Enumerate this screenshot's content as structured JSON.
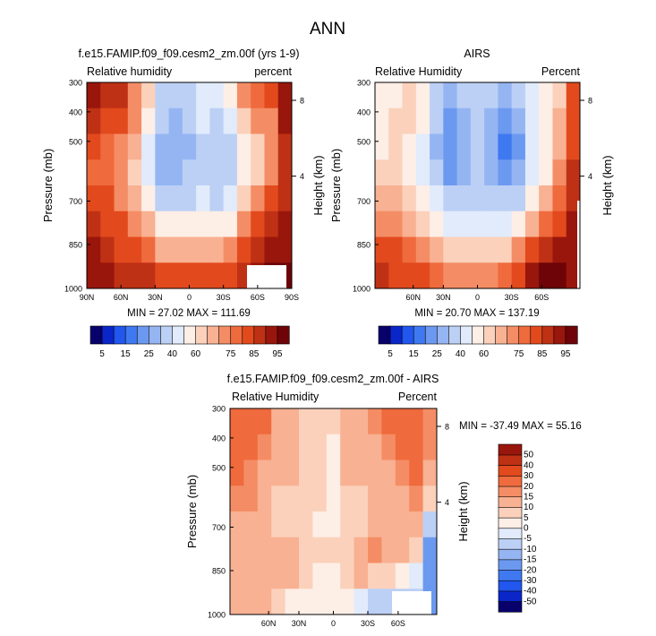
{
  "figure": {
    "title": "ANN"
  },
  "chart_data": [
    {
      "type": "heatmap",
      "title": "f.e15.FAMIP.f09_f09.cesm2_zm.00f (yrs 1-9)",
      "left_label": "Relative humidity",
      "right_label": "percent",
      "ylabel": "Pressure (mb)",
      "y2label": "Height (km)",
      "x_ticks": [
        "90N",
        "60N",
        "30N",
        "0",
        "30S",
        "60S",
        "90S"
      ],
      "y_ticks": [
        "300",
        "400",
        "500",
        "700",
        "850",
        "1000"
      ],
      "y2_ticks": [
        "8",
        "4"
      ],
      "stats": {
        "min": "27.02",
        "max": "111.69",
        "text": "MIN = 27.02  MAX = 111.69"
      },
      "colorbar": {
        "orientation": "horizontal",
        "levels": [
          5,
          10,
          15,
          20,
          25,
          30,
          40,
          50,
          60,
          65,
          70,
          75,
          80,
          85,
          90,
          95
        ],
        "labels": [
          "5",
          "15",
          "25",
          "40",
          "60",
          "75",
          "85",
          "95"
        ],
        "colors": [
          "#08006b",
          "#0a26c9",
          "#2157ee",
          "#3f79f1",
          "#6c99f0",
          "#95b5f2",
          "#bcd0f5",
          "#e1ebfb",
          "#fdeee6",
          "#fbd1bb",
          "#f8b192",
          "#f48d65",
          "#ef6a3d",
          "#e24a1e",
          "#bf3114",
          "#99160c",
          "#6e0408"
        ]
      },
      "values_grid": [
        [
          92,
          88,
          85,
          72,
          60,
          35,
          30,
          33,
          45,
          40,
          50,
          70,
          78,
          80,
          92
        ],
        [
          86,
          82,
          80,
          70,
          55,
          30,
          28,
          30,
          42,
          35,
          45,
          60,
          70,
          74,
          90
        ],
        [
          80,
          78,
          74,
          66,
          48,
          28,
          26,
          28,
          38,
          30,
          38,
          52,
          62,
          70,
          88
        ],
        [
          78,
          76,
          72,
          64,
          46,
          28,
          28,
          30,
          36,
          30,
          36,
          52,
          64,
          72,
          86
        ],
        [
          82,
          80,
          74,
          68,
          56,
          36,
          36,
          38,
          40,
          36,
          44,
          60,
          72,
          80,
          88
        ],
        [
          86,
          84,
          80,
          74,
          66,
          52,
          50,
          52,
          52,
          50,
          58,
          72,
          80,
          86,
          90
        ],
        [
          90,
          88,
          84,
          80,
          76,
          68,
          66,
          68,
          66,
          68,
          74,
          82,
          86,
          90,
          94
        ],
        [
          94,
          92,
          88,
          86,
          86,
          82,
          80,
          80,
          80,
          80,
          84,
          88,
          92,
          96,
          98
        ]
      ],
      "masked_region": "bottom-right corner below 925 mb south of 55S"
    },
    {
      "type": "heatmap",
      "title": "AIRS",
      "left_label": "Relative Humidity",
      "right_label": "Percent",
      "ylabel": "Pressure (mb)",
      "y2label": "Height (km)",
      "x_ticks": [
        "60N",
        "30N",
        "0",
        "30S",
        "60S"
      ],
      "y_ticks": [
        "300",
        "400",
        "500",
        "700",
        "850",
        "1000"
      ],
      "y2_ticks": [
        "8",
        "4"
      ],
      "stats": {
        "min": "20.70",
        "max": "137.19",
        "text": "MIN = 20.70  MAX = 137.19"
      },
      "colorbar": {
        "orientation": "horizontal",
        "levels": [
          5,
          10,
          15,
          20,
          25,
          30,
          40,
          50,
          60,
          65,
          70,
          75,
          80,
          85,
          90,
          95
        ],
        "labels": [
          "5",
          "15",
          "25",
          "40",
          "60",
          "75",
          "85",
          "95"
        ],
        "colors": [
          "#08006b",
          "#0a26c9",
          "#2157ee",
          "#3f79f1",
          "#6c99f0",
          "#95b5f2",
          "#bcd0f5",
          "#e1ebfb",
          "#fdeee6",
          "#fbd1bb",
          "#f8b192",
          "#f48d65",
          "#ef6a3d",
          "#e24a1e",
          "#bf3114",
          "#99160c",
          "#6e0408"
        ]
      },
      "values_grid": [
        [
          52,
          58,
          62,
          55,
          38,
          26,
          30,
          36,
          32,
          26,
          32,
          48,
          58,
          64,
          80
        ],
        [
          55,
          60,
          60,
          50,
          30,
          22,
          28,
          34,
          28,
          22,
          28,
          42,
          55,
          66,
          82
        ],
        [
          56,
          60,
          58,
          48,
          28,
          20,
          26,
          32,
          26,
          18,
          24,
          40,
          56,
          68,
          84
        ],
        [
          60,
          62,
          58,
          48,
          30,
          24,
          28,
          32,
          28,
          22,
          28,
          44,
          58,
          70,
          86
        ],
        [
          66,
          66,
          62,
          54,
          40,
          32,
          34,
          36,
          34,
          32,
          38,
          54,
          66,
          78,
          88
        ],
        [
          74,
          72,
          68,
          62,
          54,
          46,
          44,
          44,
          44,
          46,
          54,
          66,
          76,
          84,
          90
        ],
        [
          82,
          80,
          76,
          72,
          68,
          62,
          60,
          60,
          60,
          62,
          70,
          80,
          86,
          90,
          94
        ],
        [
          86,
          84,
          82,
          80,
          78,
          74,
          72,
          72,
          72,
          76,
          82,
          92,
          100,
          96,
          94
        ]
      ],
      "masked_region": "narrow strip at far south edge below 700 mb"
    },
    {
      "type": "heatmap",
      "title": "f.e15.FAMIP.f09_f09.cesm2_zm.00f - AIRS",
      "left_label": "Relative Humidity",
      "right_label": "Percent",
      "ylabel": "Pressure (mb)",
      "y2label": "Height (km)",
      "x_ticks": [
        "60N",
        "30N",
        "0",
        "30S",
        "60S"
      ],
      "y_ticks": [
        "300",
        "400",
        "500",
        "700",
        "850",
        "1000"
      ],
      "y2_ticks": [
        "8",
        "4"
      ],
      "stats": {
        "min": "-37.49",
        "max": "55.16",
        "text": "MIN = -37.49  MAX = 55.16"
      },
      "colorbar": {
        "orientation": "vertical",
        "levels": [
          -50,
          -40,
          -30,
          -20,
          -15,
          -10,
          -5,
          0,
          5,
          10,
          15,
          20,
          30,
          40,
          50
        ],
        "labels": [
          "-50",
          "-40",
          "-30",
          "-20",
          "-15",
          "-10",
          "-5",
          "0",
          "5",
          "10",
          "15",
          "20",
          "30",
          "40",
          "50"
        ],
        "colors": [
          "#08006b",
          "#0a26c9",
          "#2157ee",
          "#3f79f1",
          "#6c99f0",
          "#95b5f2",
          "#bcd0f5",
          "#e1ebfb",
          "#fdeee6",
          "#fbd1bb",
          "#f8b192",
          "#f48d65",
          "#ef6a3d",
          "#e24a1e",
          "#bf3114",
          "#99160c"
        ]
      },
      "values_grid": [
        [
          28,
          26,
          22,
          14,
          12,
          8,
          6,
          6,
          10,
          12,
          16,
          20,
          22,
          24,
          18
        ],
        [
          24,
          22,
          18,
          12,
          10,
          8,
          6,
          4,
          10,
          12,
          14,
          18,
          22,
          22,
          16
        ],
        [
          20,
          18,
          14,
          10,
          10,
          8,
          6,
          4,
          10,
          10,
          12,
          14,
          16,
          20,
          14
        ],
        [
          18,
          16,
          12,
          8,
          8,
          6,
          6,
          4,
          8,
          8,
          10,
          12,
          14,
          16,
          6
        ],
        [
          14,
          14,
          12,
          8,
          8,
          6,
          4,
          4,
          6,
          8,
          12,
          14,
          14,
          14,
          -10
        ],
        [
          12,
          12,
          10,
          10,
          10,
          8,
          6,
          6,
          8,
          12,
          16,
          14,
          10,
          6,
          -20
        ],
        [
          14,
          14,
          12,
          10,
          10,
          6,
          4,
          4,
          8,
          10,
          8,
          6,
          2,
          -4,
          -20
        ],
        [
          12,
          12,
          10,
          8,
          4,
          2,
          2,
          2,
          4,
          -4,
          -8,
          -10,
          -8,
          -6,
          -20
        ]
      ],
      "masked_region": "white box near 60S below 900 mb"
    }
  ]
}
